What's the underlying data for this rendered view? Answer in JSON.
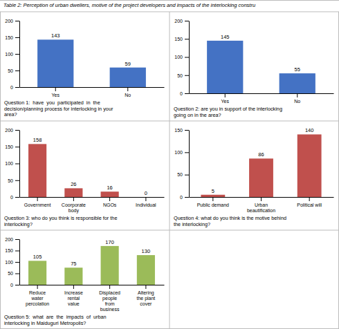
{
  "title": "Table 2: Perception of urban dwellers, motive of the project developers and impacts of the interlocking constru",
  "chart_data": [
    {
      "type": "bar",
      "title": "Question 1:  have  you  participated  in  the\ndecision/planning process for interlocking in your\narea?",
      "categories": [
        "Yes",
        "No"
      ],
      "values": [
        143,
        59
      ],
      "color": "#4472C4",
      "ylim": [
        0,
        200
      ],
      "yticks": [
        0,
        50,
        100,
        150,
        200
      ],
      "grid": false,
      "data_labels": true
    },
    {
      "type": "bar",
      "title": "Question 2: are you in support of the interlocking\ngoing on in the area?",
      "categories": [
        "Yes",
        "No"
      ],
      "values": [
        145,
        55
      ],
      "color": "#4472C4",
      "ylim": [
        0,
        200
      ],
      "yticks": [
        0,
        50,
        100,
        150,
        200
      ],
      "grid": false,
      "data_labels": true
    },
    {
      "type": "bar",
      "title": "Question 3: who do you think is responsible for the\ninterlocking?",
      "categories": [
        "Government",
        "Coorporate\nbody",
        "NGOs",
        "Individual"
      ],
      "values": [
        158,
        26,
        16,
        0
      ],
      "color": "#C0504D",
      "ylim": [
        0,
        200
      ],
      "yticks": [
        0,
        50,
        100,
        150,
        200
      ],
      "grid": false,
      "data_labels": true
    },
    {
      "type": "bar",
      "title": "Question 4: what do you think is the motive behind\nthe interlocking?",
      "categories": [
        "Public demand",
        "Urban\nbeautification",
        "Political will"
      ],
      "values": [
        5,
        86,
        140
      ],
      "color": "#C0504D",
      "ylim": [
        0,
        150
      ],
      "yticks": [
        0,
        50,
        100,
        150
      ],
      "grid": false,
      "data_labels": true
    },
    {
      "type": "bar",
      "title": "Question 5:  what  are  the  impacts  of  urban\ninterlocking in Maiduguri Metropolis?",
      "categories": [
        "Reduce\nwater\npercolation",
        "Increase\nrental\nvalue",
        "Displaced\npeople\nfrom\nbusiness",
        "Altering\nthe plant\ncover"
      ],
      "values": [
        105,
        75,
        170,
        130
      ],
      "color": "#9BBB59",
      "ylim": [
        0,
        200
      ],
      "yticks": [
        0,
        50,
        100,
        150,
        200
      ],
      "grid": false,
      "data_labels": true
    }
  ]
}
